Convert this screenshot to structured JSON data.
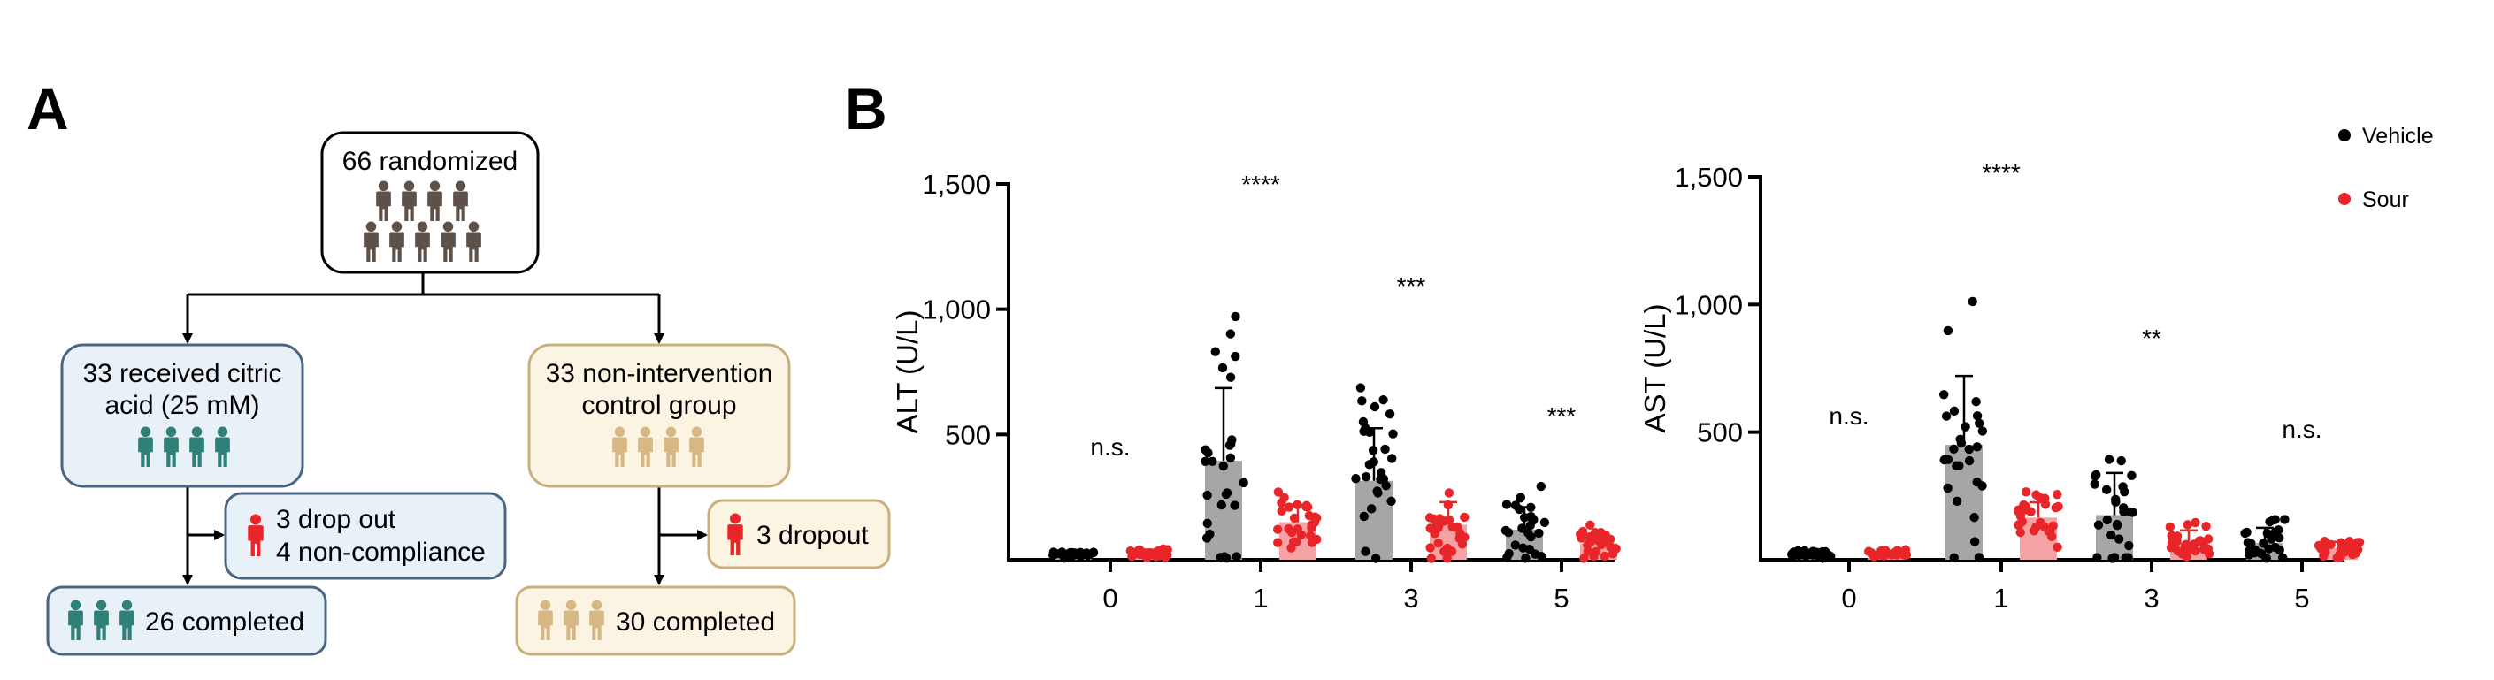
{
  "panel_a": {
    "letter": "A",
    "boxes": {
      "randomized": {
        "text": "66 randomized",
        "icon_count": 9,
        "icon_color": "#5e514a"
      },
      "citric": {
        "line1": "33 received citric",
        "line2": "acid (25 mM)",
        "icon_count": 4,
        "icon_color": "#2f8077",
        "fill": "#e9f1f8",
        "stroke": "#4b6682"
      },
      "control": {
        "line1": "33 non-intervention",
        "line2": "control group",
        "icon_count": 4,
        "icon_color": "#d7b885",
        "fill": "#fbf4e2",
        "stroke": "#c8b07c"
      },
      "dropout_citric": {
        "line1": "3 drop out",
        "line2": "4 non-compliance",
        "icon_count": 1,
        "icon_color": "#e8262a"
      },
      "dropout_control": {
        "text": "3 dropout",
        "icon_count": 1,
        "icon_color": "#e8262a"
      },
      "completed_citric": {
        "text": "26 completed",
        "icon_count": 3,
        "icon_color": "#2f8077"
      },
      "completed_control": {
        "text": "30 completed",
        "icon_count": 3,
        "icon_color": "#d7b885"
      }
    }
  },
  "panel_b": {
    "letter": "B"
  },
  "legend": {
    "items": [
      {
        "label": "Vehicle",
        "color": "#000000"
      },
      {
        "label": "Sour",
        "color": "#e8262a"
      }
    ]
  },
  "chart_data": [
    {
      "type": "bar",
      "title": "",
      "ylabel": "ALT (U/L)",
      "xlabel": "",
      "categories": [
        "0",
        "1",
        "3",
        "5"
      ],
      "ylim": [
        0,
        1500
      ],
      "yticks": [
        "500",
        "1,000",
        "1,500"
      ],
      "series": [
        {
          "name": "Vehicle",
          "values": [
            20,
            395,
            315,
            120
          ],
          "sd": [
            10,
            290,
            210,
            90
          ],
          "bar_color": "#a6a6a6",
          "point_color": "#000000"
        },
        {
          "name": "Sour",
          "values": [
            25,
            150,
            140,
            65
          ],
          "sd": [
            12,
            70,
            90,
            40
          ],
          "bar_color": "#f4a2a4",
          "point_color": "#e8262a"
        }
      ],
      "significance": [
        "n.s.",
        "****",
        "***",
        "***"
      ]
    },
    {
      "type": "bar",
      "title": "",
      "ylabel": "AST (U/L)",
      "xlabel": "",
      "categories": [
        "0",
        "1",
        "3",
        "5"
      ],
      "ylim": [
        0,
        1500
      ],
      "yticks": [
        "500",
        "1,000",
        "1,500"
      ],
      "series": [
        {
          "name": "Vehicle",
          "values": [
            25,
            450,
            175,
            65
          ],
          "sd": [
            10,
            270,
            165,
            60
          ],
          "bar_color": "#a6a6a6",
          "point_color": "#000000"
        },
        {
          "name": "Sour",
          "values": [
            25,
            165,
            65,
            45
          ],
          "sd": [
            10,
            60,
            50,
            25
          ],
          "bar_color": "#f4a2a4",
          "point_color": "#e8262a"
        }
      ],
      "significance": [
        "n.s.",
        "****",
        "**",
        "n.s."
      ]
    }
  ]
}
